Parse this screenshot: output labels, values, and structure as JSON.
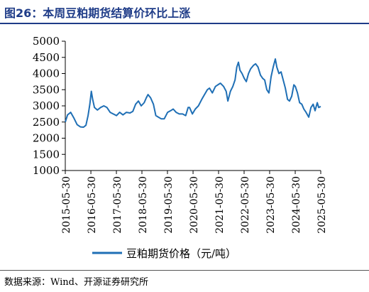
{
  "header": {
    "title": "图26：本周豆粕期货结算价环比上涨"
  },
  "footer": {
    "source": "数据来源：Wind、开源证券研究所"
  },
  "chart_data": {
    "type": "line",
    "title": "",
    "xlabel": "",
    "ylabel": "",
    "ylim": [
      1000,
      5000
    ],
    "yticks": [
      "1000",
      "1500",
      "2000",
      "2500",
      "3000",
      "3500",
      "4000",
      "4500",
      "5000"
    ],
    "xticks": [
      "2015-05-30",
      "2016-05-30",
      "2017-05-30",
      "2018-05-30",
      "2019-05-30",
      "2020-05-30",
      "2021-05-30",
      "2022-05-30",
      "2023-05-30",
      "2024-05-30",
      "2025-05-30"
    ],
    "grid": false,
    "legend_position": "bottom-center",
    "series": [
      {
        "name": "豆粕期货价格（元/吨）",
        "color": "#1f6fb5",
        "points": [
          [
            "2015-05-30",
            2500
          ],
          [
            "2015-07-01",
            2720
          ],
          [
            "2015-08-15",
            2800
          ],
          [
            "2015-10-01",
            2620
          ],
          [
            "2015-11-15",
            2420
          ],
          [
            "2016-01-01",
            2350
          ],
          [
            "2016-02-15",
            2340
          ],
          [
            "2016-03-20",
            2400
          ],
          [
            "2016-04-20",
            2700
          ],
          [
            "2016-05-15",
            3050
          ],
          [
            "2016-06-05",
            3450
          ],
          [
            "2016-06-25",
            3200
          ],
          [
            "2016-07-20",
            2950
          ],
          [
            "2016-09-01",
            2870
          ],
          [
            "2016-10-15",
            2950
          ],
          [
            "2016-12-01",
            3000
          ],
          [
            "2017-01-15",
            2950
          ],
          [
            "2017-03-01",
            2800
          ],
          [
            "2017-04-15",
            2750
          ],
          [
            "2017-06-01",
            2700
          ],
          [
            "2017-07-15",
            2800
          ],
          [
            "2017-09-01",
            2720
          ],
          [
            "2017-10-20",
            2800
          ],
          [
            "2017-12-10",
            2780
          ],
          [
            "2018-01-20",
            2830
          ],
          [
            "2018-03-01",
            3050
          ],
          [
            "2018-04-10",
            3150
          ],
          [
            "2018-05-20",
            3000
          ],
          [
            "2018-07-01",
            3100
          ],
          [
            "2018-08-01",
            3250
          ],
          [
            "2018-08-25",
            3350
          ],
          [
            "2018-10-01",
            3250
          ],
          [
            "2018-11-10",
            3050
          ],
          [
            "2018-12-15",
            2700
          ],
          [
            "2019-01-20",
            2650
          ],
          [
            "2019-03-01",
            2600
          ],
          [
            "2019-04-15",
            2600
          ],
          [
            "2019-06-01",
            2800
          ],
          [
            "2019-07-15",
            2850
          ],
          [
            "2019-08-20",
            2900
          ],
          [
            "2019-10-01",
            2800
          ],
          [
            "2019-11-15",
            2750
          ],
          [
            "2020-01-01",
            2750
          ],
          [
            "2020-02-15",
            2700
          ],
          [
            "2020-03-20",
            2950
          ],
          [
            "2020-04-10",
            2950
          ],
          [
            "2020-05-20",
            2750
          ],
          [
            "2020-07-01",
            2900
          ],
          [
            "2020-08-15",
            3000
          ],
          [
            "2020-10-01",
            3200
          ],
          [
            "2020-11-10",
            3350
          ],
          [
            "2020-12-20",
            3500
          ],
          [
            "2021-01-20",
            3550
          ],
          [
            "2021-03-01",
            3400
          ],
          [
            "2021-04-15",
            3600
          ],
          [
            "2021-05-20",
            3650
          ],
          [
            "2021-06-25",
            3700
          ],
          [
            "2021-08-10",
            3600
          ],
          [
            "2021-09-15",
            3450
          ],
          [
            "2021-10-10",
            3150
          ],
          [
            "2021-11-15",
            3450
          ],
          [
            "2021-12-20",
            3600
          ],
          [
            "2022-01-20",
            3800
          ],
          [
            "2022-02-15",
            4200
          ],
          [
            "2022-03-10",
            4350
          ],
          [
            "2022-04-01",
            4100
          ],
          [
            "2022-05-01",
            4000
          ],
          [
            "2022-06-01",
            3850
          ],
          [
            "2022-07-01",
            3750
          ],
          [
            "2022-08-01",
            4000
          ],
          [
            "2022-09-01",
            4150
          ],
          [
            "2022-10-10",
            4250
          ],
          [
            "2022-11-10",
            4300
          ],
          [
            "2022-12-15",
            4200
          ],
          [
            "2023-01-20",
            3950
          ],
          [
            "2023-02-20",
            3850
          ],
          [
            "2023-03-20",
            3800
          ],
          [
            "2023-04-20",
            3500
          ],
          [
            "2023-05-20",
            3400
          ],
          [
            "2023-06-20",
            3900
          ],
          [
            "2023-07-20",
            4200
          ],
          [
            "2023-08-20",
            4450
          ],
          [
            "2023-09-10",
            4200
          ],
          [
            "2023-10-10",
            4000
          ],
          [
            "2023-11-10",
            4050
          ],
          [
            "2023-12-10",
            3800
          ],
          [
            "2024-01-10",
            3550
          ],
          [
            "2024-02-10",
            3200
          ],
          [
            "2024-03-10",
            3150
          ],
          [
            "2024-04-10",
            3300
          ],
          [
            "2024-05-10",
            3650
          ],
          [
            "2024-06-01",
            3600
          ],
          [
            "2024-07-01",
            3400
          ],
          [
            "2024-08-01",
            3100
          ],
          [
            "2024-09-01",
            3050
          ],
          [
            "2024-10-01",
            2900
          ],
          [
            "2024-11-01",
            2800
          ],
          [
            "2024-12-10",
            2650
          ],
          [
            "2025-01-10",
            2950
          ],
          [
            "2025-02-10",
            3050
          ],
          [
            "2025-03-10",
            2850
          ],
          [
            "2025-04-10",
            3100
          ],
          [
            "2025-05-01",
            2950
          ],
          [
            "2025-05-30",
            2980
          ]
        ]
      }
    ]
  }
}
